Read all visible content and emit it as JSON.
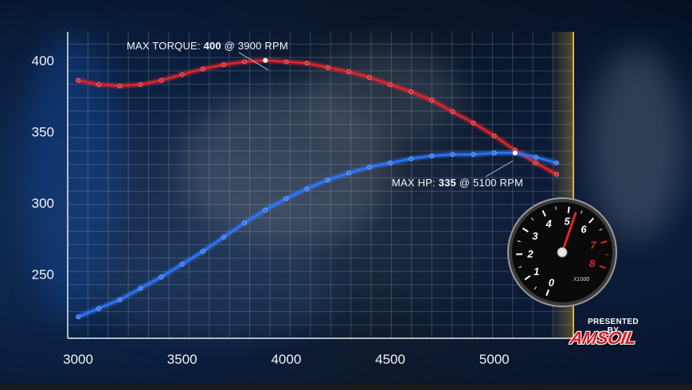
{
  "chart_data": {
    "type": "line",
    "x": [
      3000,
      3100,
      3200,
      3300,
      3400,
      3500,
      3600,
      3700,
      3800,
      3900,
      4000,
      4100,
      4200,
      4300,
      4400,
      4500,
      4600,
      4700,
      4800,
      4900,
      5000,
      5100,
      5200,
      5300
    ],
    "series": [
      {
        "values": [
          386,
          383,
          382,
          383,
          386,
          390,
          394,
          397,
          399,
          400,
          399,
          398,
          395,
          392,
          388,
          383,
          378,
          372,
          364,
          356,
          347,
          337,
          328,
          320
        ],
        "color": "#e0252a"
      },
      {
        "values": [
          220,
          226,
          232,
          240,
          248,
          257,
          266,
          276,
          286,
          295,
          303,
          310,
          316,
          321,
          325,
          328,
          331,
          333,
          334,
          334,
          335,
          335,
          332,
          328
        ],
        "color": "#2f78ff"
      }
    ],
    "xlim": [
      2950,
      5380
    ],
    "ylim": [
      205,
      420
    ],
    "xticks": [
      3000,
      3500,
      4000,
      4500,
      5000
    ],
    "yticks": [
      250,
      300,
      350,
      400
    ],
    "grid": true,
    "rpm_limit_line_color": "#d8b43c",
    "annotations": {
      "torque": {
        "prefix": "MAX TORQUE: ",
        "value": "400",
        "suffix": " @ 3900 RPM",
        "x": 3900,
        "y": 400
      },
      "hp": {
        "prefix": "MAX HP: ",
        "value": "335",
        "suffix": " @ 5100 RPM",
        "x": 5100,
        "y": 335
      }
    }
  },
  "gauge": {
    "numbers": [
      "0",
      "1",
      "2",
      "3",
      "4",
      "5",
      "6",
      "7",
      "8"
    ],
    "unit": "X1000",
    "needle_value": 5.3
  },
  "branding": {
    "presented_by": "PRESENTED BY",
    "brand": "AMSOIL"
  }
}
